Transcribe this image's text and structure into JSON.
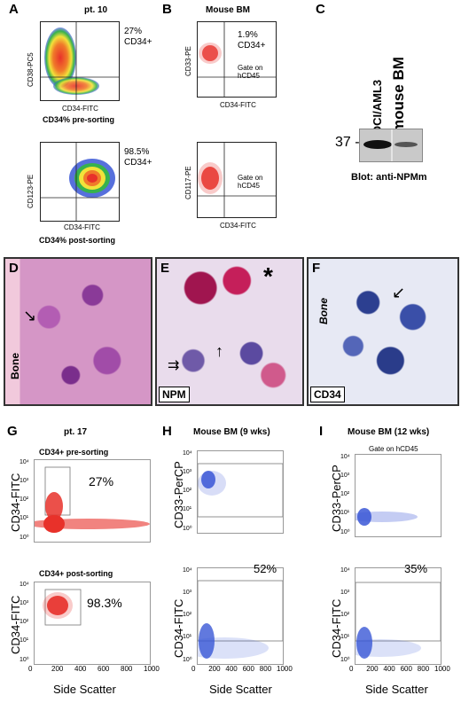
{
  "panels": {
    "A": {
      "letter": "A",
      "title": "pt. 10",
      "pre": {
        "pct": "27%",
        "marker": "CD34+",
        "ylabel": "CD38-PC5",
        "xlabel": "CD34-FITC",
        "caption": "CD34% pre-sorting"
      },
      "post": {
        "pct": "98.5%",
        "marker": "CD34+",
        "ylabel": "CD123-PE",
        "xlabel": "CD34-FITC",
        "caption": "CD34% post-sorting"
      }
    },
    "B": {
      "letter": "B",
      "title": "Mouse BM",
      "top": {
        "pct": "1.9%",
        "marker": "CD34+",
        "ylabel": "CD33-PE",
        "xlabel": "CD34-FITC",
        "gate": "Gate on hCD45"
      },
      "bottom": {
        "ylabel": "CD117-PE",
        "xlabel": "CD34-FITC",
        "gate": "Gate on hCD45"
      }
    },
    "C": {
      "letter": "C",
      "lane1": "OCI/AML3",
      "lane2": "mouse BM",
      "marker": "37 -",
      "caption": "Blot: anti-NPMm"
    },
    "D": {
      "letter": "D",
      "label": "Bone"
    },
    "E": {
      "letter": "E",
      "label": "NPM",
      "star": "*"
    },
    "F": {
      "letter": "F",
      "label_bone": "Bone",
      "label": "CD34"
    },
    "G": {
      "letter": "G",
      "title": "pt. 17",
      "pre": {
        "caption": "CD34+ pre-sorting",
        "pct": "27%",
        "ylabel": "CD34-FITC"
      },
      "post": {
        "caption": "CD34+ post-sorting",
        "pct": "98.3%",
        "ylabel": "CD34-FITC"
      },
      "xlabel": "Side Scatter",
      "xticks": [
        "0",
        "200",
        "400",
        "600",
        "800",
        "1000"
      ]
    },
    "H": {
      "letter": "H",
      "title": "Mouse BM (9 wks)",
      "top": {
        "ylabel": "CD33-PerCP"
      },
      "bottom": {
        "ylabel": "CD34-FITC",
        "pct": "52%"
      },
      "xlabel": "Side Scatter",
      "xticks": [
        "0",
        "200",
        "400",
        "600",
        "800",
        "1000"
      ]
    },
    "I": {
      "letter": "I",
      "title": "Mouse BM (12 wks)",
      "gate": "Gate on hCD45",
      "top": {
        "ylabel": "CD33-PerCP"
      },
      "bottom": {
        "ylabel": "CD34-FITC",
        "pct": "35%"
      },
      "xlabel": "Side Scatter",
      "xticks": [
        "0",
        "200",
        "400",
        "600",
        "800",
        "1000"
      ]
    }
  },
  "yticks": [
    "10⁴",
    "10³",
    "10²",
    "10¹",
    "10⁰"
  ],
  "colors": {
    "red": "#e8312a",
    "blue": "#3a57d6",
    "yellow": "#f2e23a",
    "green": "#37b24d",
    "hist_purple": "#b35db3",
    "hist_pink": "#e6b2d0"
  }
}
